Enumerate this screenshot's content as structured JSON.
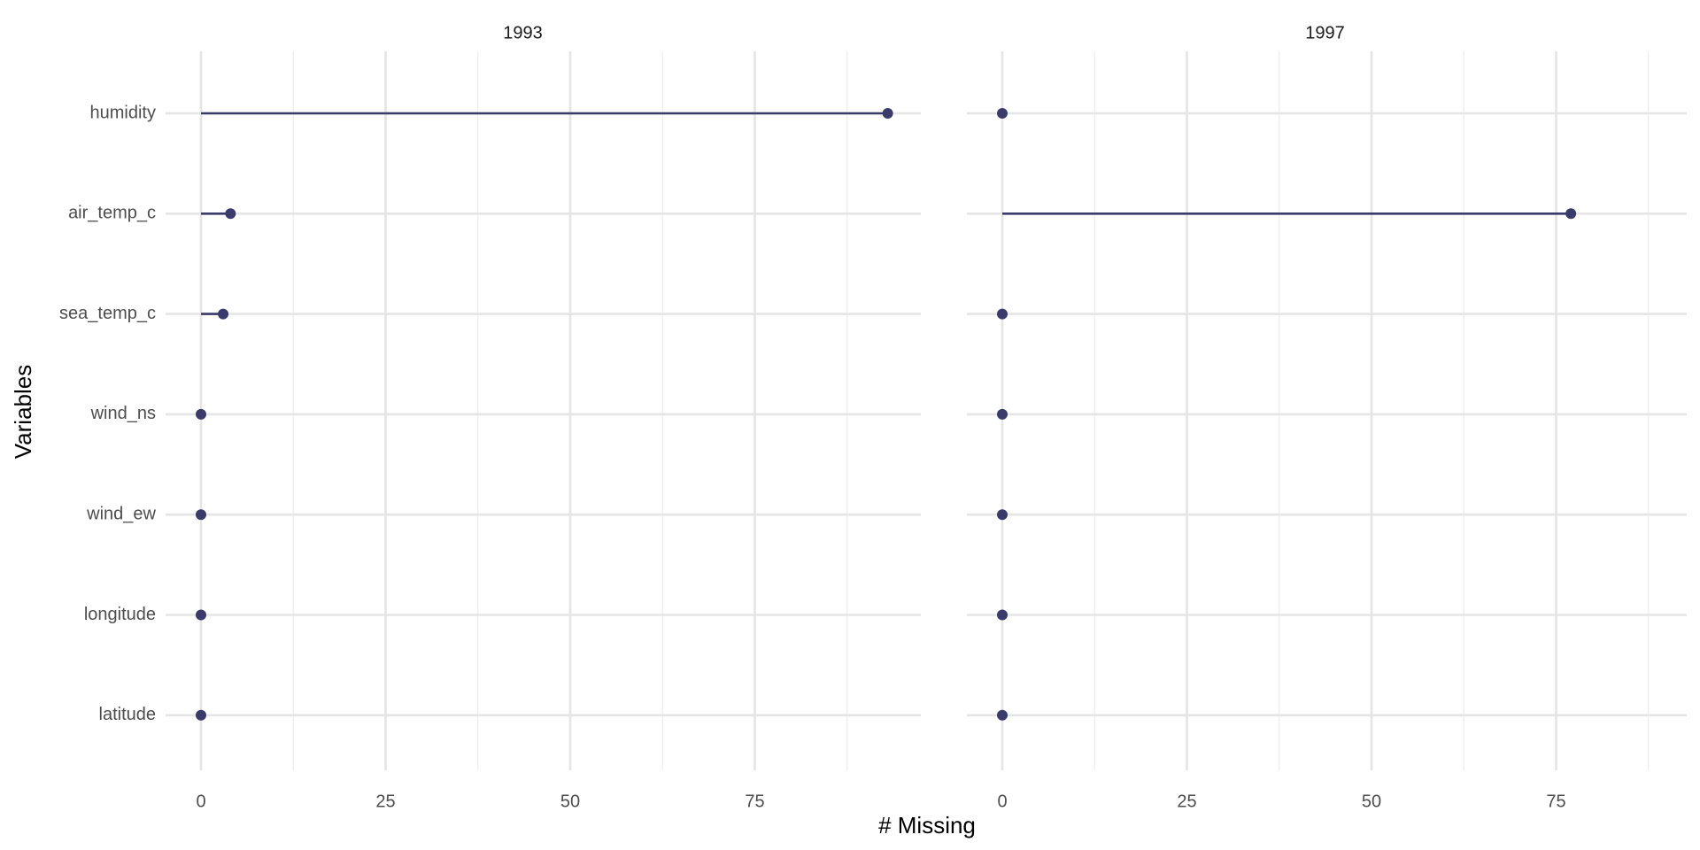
{
  "chart_data": {
    "type": "lollipop",
    "xlabel": "# Missing",
    "ylabel": "Variables",
    "xlim": [
      -2.5,
      97
    ],
    "x_ticks": [
      0,
      25,
      50,
      75
    ],
    "x_minor_ticks": [
      12.5,
      37.5,
      62.5,
      87.5
    ],
    "categories": [
      "humidity",
      "air_temp_c",
      "sea_temp_c",
      "wind_ns",
      "wind_ew",
      "longitude",
      "latitude"
    ],
    "panels": [
      {
        "label": "1993",
        "values": [
          93,
          4,
          3,
          0,
          0,
          0,
          0
        ]
      },
      {
        "label": "1997",
        "values": [
          0,
          77,
          0,
          0,
          0,
          0,
          0
        ]
      }
    ],
    "color": "#3b3b6b",
    "grid": true,
    "legend": "none"
  }
}
